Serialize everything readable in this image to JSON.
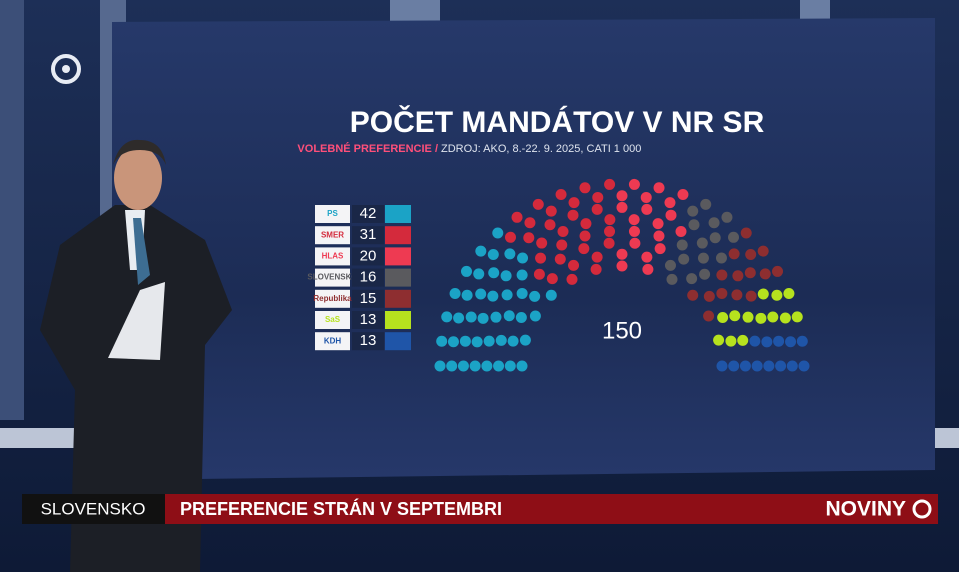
{
  "header": {
    "ticker_section": "SLOVENSKO",
    "ticker_headline": "PREFERENCIE STRÁN V SEPTEMBRI",
    "brand": "NOVINY"
  },
  "chart_data": {
    "type": "parliament",
    "title": "POČET MANDÁTOV V NR SR",
    "subtitle_label": "VOLEBNÉ PREFERENCIE /",
    "subtitle": "ZDROJ: AKO, 8.-22. 9. 2025, CATI 1 000",
    "total": 150,
    "categories": [
      "PS",
      "SMER",
      "HLAS",
      "SLOVENSKO",
      "Republika",
      "SaS",
      "KDH"
    ],
    "values": [
      42,
      31,
      20,
      16,
      15,
      13,
      13
    ],
    "colors": [
      "#1ba3c6",
      "#d42a3c",
      "#ee3a52",
      "#5a5a5e",
      "#8e2e30",
      "#b6e21e",
      "#1f55a8"
    ]
  }
}
